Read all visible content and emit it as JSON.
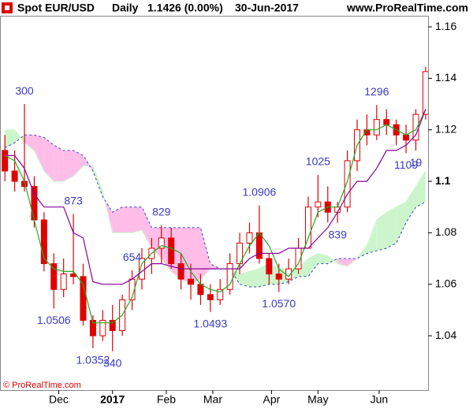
{
  "chart_data": {
    "type": "candlestick",
    "title": "Spot EUR/USD",
    "period": "Daily",
    "last": "1.1426 (0.00%)",
    "date": "30-Jun-2017",
    "site": "www.ProRealTime.com",
    "footer": "© ProRealTime.com",
    "x": [
      -6,
      -2,
      2,
      6,
      10,
      14,
      18,
      22,
      26,
      30,
      34,
      38,
      42,
      46,
      50,
      54,
      58,
      62,
      66,
      70,
      74,
      78,
      82,
      86,
      90,
      94,
      98,
      102,
      106,
      110,
      114,
      118,
      122,
      126,
      130,
      134,
      138,
      142,
      146,
      150,
      154,
      158,
      162,
      166
    ],
    "open": [
      1.112,
      1.104,
      1.1,
      1.098,
      1.085,
      1.068,
      1.058,
      1.064,
      1.063,
      1.046,
      1.04,
      1.046,
      1.042,
      1.054,
      1.062,
      1.07,
      1.074,
      1.078,
      1.068,
      1.062,
      1.06,
      1.056,
      1.054,
      1.058,
      1.068,
      1.076,
      1.08,
      1.07,
      1.064,
      1.062,
      1.066,
      1.074,
      1.09,
      1.092,
      1.088,
      1.09,
      1.108,
      1.12,
      1.118,
      1.124,
      1.122,
      1.118,
      1.116,
      1.126
    ],
    "high": [
      1.118,
      1.112,
      1.13,
      1.102,
      1.088,
      1.072,
      1.07,
      1.0873,
      1.068,
      1.048,
      1.05,
      1.052,
      1.056,
      1.0654,
      1.074,
      1.078,
      1.0829,
      1.082,
      1.072,
      1.068,
      1.064,
      1.06,
      1.062,
      1.072,
      1.08,
      1.084,
      1.0906,
      1.072,
      1.068,
      1.07,
      1.078,
      1.094,
      1.1025,
      1.098,
      1.092,
      1.112,
      1.124,
      1.126,
      1.1296,
      1.128,
      1.124,
      1.122,
      1.128,
      1.1445
    ],
    "low": [
      1.1,
      1.096,
      1.096,
      1.082,
      1.065,
      1.0506,
      1.055,
      1.06,
      1.044,
      1.0352,
      1.038,
      1.034,
      1.04,
      1.05,
      1.058,
      1.064,
      1.068,
      1.066,
      1.058,
      1.054,
      1.052,
      1.0493,
      1.052,
      1.056,
      1.064,
      1.072,
      1.068,
      1.06,
      1.057,
      1.06,
      1.064,
      1.074,
      1.086,
      1.084,
      1.0839,
      1.088,
      1.104,
      1.114,
      1.116,
      1.118,
      1.114,
      1.1109,
      1.1119,
      1.124
    ],
    "close": [
      1.104,
      1.1,
      1.098,
      1.085,
      1.068,
      1.058,
      1.064,
      1.063,
      1.046,
      1.04,
      1.046,
      1.042,
      1.054,
      1.062,
      1.07,
      1.074,
      1.078,
      1.068,
      1.062,
      1.06,
      1.056,
      1.054,
      1.058,
      1.068,
      1.076,
      1.08,
      1.07,
      1.064,
      1.062,
      1.066,
      1.074,
      1.09,
      1.092,
      1.088,
      1.09,
      1.108,
      1.12,
      1.118,
      1.124,
      1.122,
      1.118,
      1.116,
      1.126,
      1.1426
    ],
    "candle_color": "#e00000",
    "lines": [
      {
        "color": "#22aa22",
        "values": [
          1.11,
          1.108,
          1.1,
          1.085,
          1.07,
          1.066,
          1.065,
          1.065,
          1.06,
          1.045,
          1.045,
          1.045,
          1.048,
          1.055,
          1.068,
          1.072,
          1.075,
          1.074,
          1.072,
          1.065,
          1.06,
          1.058,
          1.057,
          1.06,
          1.068,
          1.075,
          1.08,
          1.075,
          1.066,
          1.063,
          1.068,
          1.078,
          1.088,
          1.09,
          1.09,
          1.1,
          1.114,
          1.12,
          1.12,
          1.122,
          1.12,
          1.118,
          1.12,
          1.128
        ]
      },
      {
        "color": "#880099",
        "values": [
          1.11,
          1.11,
          1.105,
          1.095,
          1.09,
          1.09,
          1.09,
          1.08,
          1.078,
          1.061,
          1.06,
          1.06,
          1.06,
          1.062,
          1.065,
          1.068,
          1.068,
          1.067,
          1.066,
          1.066,
          1.066,
          1.066,
          1.066,
          1.066,
          1.066,
          1.07,
          1.072,
          1.072,
          1.072,
          1.074,
          1.074,
          1.074,
          1.078,
          1.082,
          1.088,
          1.095,
          1.1,
          1.1,
          1.105,
          1.112,
          1.112,
          1.114,
          1.118,
          1.128
        ]
      }
    ],
    "cloud": {
      "span_a": [
        1.12,
        1.12,
        1.115,
        1.112,
        1.104,
        1.1,
        1.1,
        1.102,
        1.106,
        1.106,
        1.096,
        1.08,
        1.08,
        1.08,
        1.081,
        1.074,
        1.07,
        1.065,
        1.062,
        1.06,
        1.062,
        1.066,
        1.066,
        1.066,
        1.064,
        1.065,
        1.066,
        1.068,
        1.066,
        1.066,
        1.066,
        1.07,
        1.072,
        1.071,
        1.068,
        1.067,
        1.07,
        1.075,
        1.085,
        1.088,
        1.09,
        1.092,
        1.098,
        1.104
      ],
      "span_b": [
        1.113,
        1.115,
        1.118,
        1.118,
        1.117,
        1.114,
        1.112,
        1.112,
        1.11,
        1.104,
        1.094,
        1.088,
        1.09,
        1.09,
        1.09,
        1.082,
        1.082,
        1.082,
        1.082,
        1.082,
        1.082,
        1.068,
        1.066,
        1.066,
        1.06,
        1.059,
        1.059,
        1.06,
        1.06,
        1.061,
        1.063,
        1.063,
        1.068,
        1.068,
        1.07,
        1.07,
        1.07,
        1.072,
        1.073,
        1.074,
        1.076,
        1.084,
        1.09,
        1.092
      ],
      "up_color": "#ccf5cc",
      "down_color": "#ffbde8",
      "edge_color": "#3344cc"
    },
    "annotations": [
      {
        "label": "300",
        "x": 2,
        "value": 1.13
      },
      {
        "label": "873",
        "x": 22,
        "value": 1.0873
      },
      {
        "label": "1.0506",
        "x": 14,
        "value": 1.0506
      },
      {
        "label": "654",
        "x": 46,
        "value": 1.0654
      },
      {
        "label": "1.0352",
        "x": 30,
        "value": 1.0352
      },
      {
        "label": "340",
        "x": 38,
        "value": 1.034
      },
      {
        "label": "829",
        "x": 58,
        "value": 1.0829
      },
      {
        "label": "1.0493",
        "x": 78,
        "value": 1.0493
      },
      {
        "label": "1.0906",
        "x": 98,
        "value": 1.0906
      },
      {
        "label": "1.0570",
        "x": 106,
        "value": 1.057
      },
      {
        "label": "1025",
        "x": 122,
        "value": 1.1025
      },
      {
        "label": "839",
        "x": 130,
        "value": 1.0839
      },
      {
        "label": "1296",
        "x": 146,
        "value": 1.1296
      },
      {
        "label": "1109",
        "x": 158,
        "value": 1.1109
      },
      {
        "label": "19",
        "x": 162,
        "value": 1.1119
      }
    ],
    "xlim": [
      -8,
      167
    ],
    "ylim": [
      1.0189,
      1.1643
    ],
    "xticks": [
      {
        "value": 16,
        "label": "Dec"
      },
      {
        "value": 38,
        "label": "2017"
      },
      {
        "value": 60,
        "label": "Feb"
      },
      {
        "value": 79,
        "label": "Mar"
      },
      {
        "value": 103,
        "label": "Apr"
      },
      {
        "value": 122,
        "label": "May"
      },
      {
        "value": 147,
        "label": "Jun"
      }
    ],
    "yticks": [
      1.04,
      1.06,
      1.08,
      1.1,
      1.12,
      1.14,
      1.16
    ],
    "grid": false
  }
}
